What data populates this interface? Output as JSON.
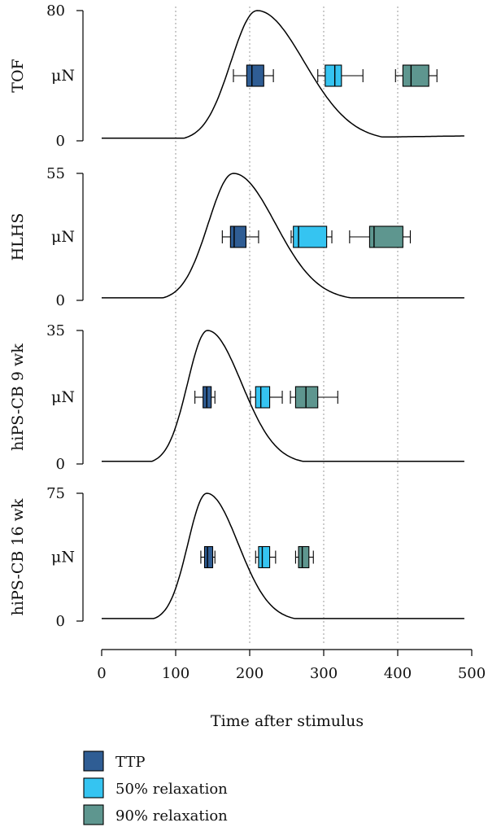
{
  "chart_data": {
    "type": "line",
    "xlabel": "Time after stimulus",
    "xlim": [
      0,
      500
    ],
    "x_ticks": [
      0,
      100,
      200,
      300,
      400,
      500
    ],
    "vertical_gridlines": [
      100,
      200,
      300,
      400
    ],
    "panels": [
      {
        "name": "TOF",
        "ylabel": "μN",
        "ylim": [
          0,
          80
        ],
        "y_ticks": [
          0,
          80
        ],
        "curve": {
          "peak_x": 210,
          "rise_width": 50,
          "decay_width": 90,
          "baseline_end": 490,
          "end_value": 3
        },
        "boxes": [
          {
            "series": "TTP",
            "whisker_low": 178,
            "q1": 196,
            "median": 203,
            "q3": 219,
            "whisker_high": 232
          },
          {
            "series": "50% relaxation",
            "whisker_low": 292,
            "q1": 302,
            "median": 315,
            "q3": 324,
            "whisker_high": 353
          },
          {
            "series": "90% relaxation",
            "whisker_low": 397,
            "q1": 407,
            "median": 418,
            "q3": 442,
            "whisker_high": 453
          }
        ]
      },
      {
        "name": "HLHS",
        "ylabel": "μN",
        "ylim": [
          0,
          55
        ],
        "y_ticks": [
          0,
          55
        ],
        "curve": {
          "peak_x": 178,
          "rise_width": 48,
          "decay_width": 80,
          "baseline_end": 490,
          "end_value": 1
        },
        "boxes": [
          {
            "series": "TTP",
            "whisker_low": 163,
            "q1": 174,
            "median": 179,
            "q3": 195,
            "whisker_high": 212
          },
          {
            "series": "50% relaxation",
            "whisker_low": 256,
            "q1": 259,
            "median": 266,
            "q3": 304,
            "whisker_high": 311
          },
          {
            "series": "90% relaxation",
            "whisker_low": 335,
            "q1": 362,
            "median": 368,
            "q3": 407,
            "whisker_high": 417
          }
        ]
      },
      {
        "name": "hiPS-CB 9 wk",
        "ylabel": "μN",
        "ylim": [
          0,
          35
        ],
        "y_ticks": [
          0,
          35
        ],
        "curve": {
          "peak_x": 143,
          "rise_width": 38,
          "decay_width": 65,
          "baseline_end": 490,
          "end_value": 0
        },
        "boxes": [
          {
            "series": "TTP",
            "whisker_low": 126,
            "q1": 137,
            "median": 142,
            "q3": 148,
            "whisker_high": 153
          },
          {
            "series": "50% relaxation",
            "whisker_low": 201,
            "q1": 208,
            "median": 215,
            "q3": 227,
            "whisker_high": 244
          },
          {
            "series": "90% relaxation",
            "whisker_low": 255,
            "q1": 262,
            "median": 276,
            "q3": 292,
            "whisker_high": 319
          }
        ]
      },
      {
        "name": "hiPS-CB 16 wk",
        "ylabel": "μN",
        "ylim": [
          0,
          75
        ],
        "y_ticks": [
          0,
          75
        ],
        "curve": {
          "peak_x": 142,
          "rise_width": 36,
          "decay_width": 60,
          "baseline_end": 490,
          "end_value": 0
        },
        "boxes": [
          {
            "series": "TTP",
            "whisker_low": 134,
            "q1": 139,
            "median": 143,
            "q3": 150,
            "whisker_high": 153
          },
          {
            "series": "50% relaxation",
            "whisker_low": 208,
            "q1": 212,
            "median": 217,
            "q3": 227,
            "whisker_high": 235
          },
          {
            "series": "90% relaxation",
            "whisker_low": 262,
            "q1": 266,
            "median": 271,
            "q3": 280,
            "whisker_high": 286
          }
        ]
      }
    ],
    "legend": {
      "placement": "bottom-left",
      "entries": [
        {
          "label": "TTP",
          "color": "#2f5d94"
        },
        {
          "label": "50% relaxation",
          "color": "#35c4f1"
        },
        {
          "label": "90% relaxation",
          "color": "#5e968f"
        }
      ]
    },
    "colors": {
      "TTP": "#2f5d94",
      "50% relaxation": "#35c4f1",
      "90% relaxation": "#5e968f",
      "curve": "#000000",
      "gridline": "#9a9a9a"
    }
  }
}
